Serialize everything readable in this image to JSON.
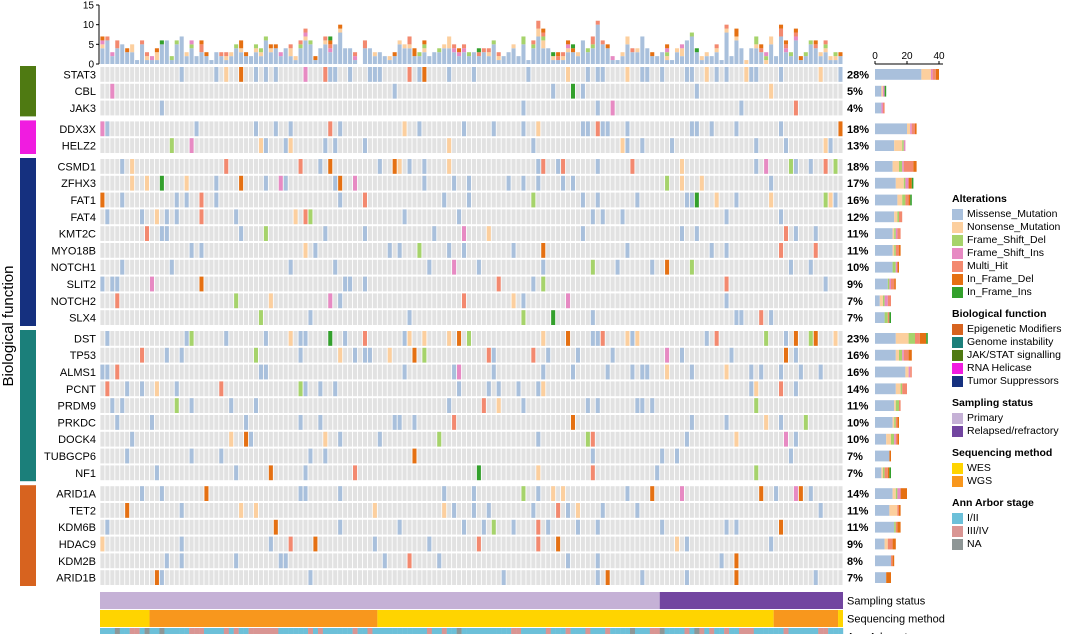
{
  "chart_data": {
    "type": "oncoprint",
    "n_samples": 150,
    "y_axis_label": "Biological function",
    "top_axis_ticks": [
      0,
      5,
      10,
      15
    ],
    "right_axis_ticks": [
      0,
      20,
      40
    ],
    "colors": {
      "Missense_Mutation": "#a9c0dc",
      "Nonsense_Mutation": "#fccf9e",
      "Frame_Shift_Del": "#a6d36b",
      "Frame_Shift_Ins": "#e78ac3",
      "Multi_Hit": "#f3896f",
      "In_Frame_Del": "#e57012",
      "In_Frame_Ins": "#33a02c",
      "Epigenetic Modifiers": "#d7631f",
      "Genome instability": "#1b7f7a",
      "JAK/STAT signalling": "#4f7a12",
      "RNA Helicase": "#f01ce0",
      "Tumor Suppressors": "#15307f",
      "Primary": "#c5b1d6",
      "Relapsed/refractory": "#7245a0",
      "WES": "#ffd400",
      "WGS": "#f8971d",
      "I/II": "#6cc0d9",
      "III/IV": "#d99593",
      "NA": "#8e9696",
      "empty": "#e2e2e2"
    },
    "genes": [
      {
        "name": "STAT3",
        "pct": "28%",
        "group": "JAK/STAT signalling",
        "count": 40,
        "freq": 0.28
      },
      {
        "name": "CBL",
        "pct": "5%",
        "group": "JAK/STAT signalling",
        "count": 7,
        "freq": 0.05
      },
      {
        "name": "JAK3",
        "pct": "4%",
        "group": "JAK/STAT signalling",
        "count": 6,
        "freq": 0.04
      },
      {
        "name": "DDX3X",
        "pct": "18%",
        "group": "RNA Helicase",
        "count": 26,
        "freq": 0.18
      },
      {
        "name": "HELZ2",
        "pct": "13%",
        "group": "RNA Helicase",
        "count": 19,
        "freq": 0.13
      },
      {
        "name": "CSMD1",
        "pct": "18%",
        "group": "Tumor Suppressors",
        "count": 26,
        "freq": 0.18
      },
      {
        "name": "ZFHX3",
        "pct": "17%",
        "group": "Tumor Suppressors",
        "count": 24,
        "freq": 0.17
      },
      {
        "name": "FAT1",
        "pct": "16%",
        "group": "Tumor Suppressors",
        "count": 23,
        "freq": 0.16
      },
      {
        "name": "FAT4",
        "pct": "12%",
        "group": "Tumor Suppressors",
        "count": 17,
        "freq": 0.12
      },
      {
        "name": "KMT2C",
        "pct": "11%",
        "group": "Tumor Suppressors",
        "count": 16,
        "freq": 0.11
      },
      {
        "name": "MYO18B",
        "pct": "11%",
        "group": "Tumor Suppressors",
        "count": 16,
        "freq": 0.11
      },
      {
        "name": "NOTCH1",
        "pct": "10%",
        "group": "Tumor Suppressors",
        "count": 15,
        "freq": 0.1
      },
      {
        "name": "SLIT2",
        "pct": "9%",
        "group": "Tumor Suppressors",
        "count": 13,
        "freq": 0.09
      },
      {
        "name": "NOTCH2",
        "pct": "7%",
        "group": "Tumor Suppressors",
        "count": 10,
        "freq": 0.07
      },
      {
        "name": "SLX4",
        "pct": "7%",
        "group": "Tumor Suppressors",
        "count": 10,
        "freq": 0.07
      },
      {
        "name": "DST",
        "pct": "23%",
        "group": "Genome instability",
        "count": 33,
        "freq": 0.23
      },
      {
        "name": "TP53",
        "pct": "16%",
        "group": "Genome instability",
        "count": 23,
        "freq": 0.16
      },
      {
        "name": "ALMS1",
        "pct": "16%",
        "group": "Genome instability",
        "count": 23,
        "freq": 0.16
      },
      {
        "name": "PCNT",
        "pct": "14%",
        "group": "Genome instability",
        "count": 20,
        "freq": 0.14
      },
      {
        "name": "PRDM9",
        "pct": "11%",
        "group": "Genome instability",
        "count": 16,
        "freq": 0.11
      },
      {
        "name": "PRKDC",
        "pct": "10%",
        "group": "Genome instability",
        "count": 15,
        "freq": 0.1
      },
      {
        "name": "DOCK4",
        "pct": "10%",
        "group": "Genome instability",
        "count": 15,
        "freq": 0.1
      },
      {
        "name": "TUBGCP6",
        "pct": "7%",
        "group": "Genome instability",
        "count": 10,
        "freq": 0.07
      },
      {
        "name": "NF1",
        "pct": "7%",
        "group": "Genome instability",
        "count": 10,
        "freq": 0.07
      },
      {
        "name": "ARID1A",
        "pct": "14%",
        "group": "Epigenetic Modifiers",
        "count": 20,
        "freq": 0.14
      },
      {
        "name": "TET2",
        "pct": "11%",
        "group": "Epigenetic Modifiers",
        "count": 16,
        "freq": 0.11
      },
      {
        "name": "KDM6B",
        "pct": "11%",
        "group": "Epigenetic Modifiers",
        "count": 16,
        "freq": 0.11
      },
      {
        "name": "HDAC9",
        "pct": "9%",
        "group": "Epigenetic Modifiers",
        "count": 13,
        "freq": 0.09
      },
      {
        "name": "KDM2B",
        "pct": "8%",
        "group": "Epigenetic Modifiers",
        "count": 12,
        "freq": 0.08
      },
      {
        "name": "ARID1B",
        "pct": "7%",
        "group": "Epigenetic Modifiers",
        "count": 10,
        "freq": 0.07
      }
    ],
    "groups": [
      {
        "name": "JAK/STAT signalling",
        "genes": 3
      },
      {
        "name": "RNA Helicase",
        "genes": 2
      },
      {
        "name": "Tumor Suppressors",
        "genes": 10
      },
      {
        "name": "Genome instability",
        "genes": 9
      },
      {
        "name": "Epigenetic Modifiers",
        "genes": 6
      }
    ],
    "annotation_tracks": [
      {
        "name": "Sampling status",
        "segments": [
          {
            "category": "Primary",
            "samples": 113
          },
          {
            "category": "Relapsed/refractory",
            "samples": 37
          }
        ]
      },
      {
        "name": "Sequencing method",
        "segments": [
          {
            "category": "WES",
            "samples": 10
          },
          {
            "category": "WGS",
            "samples": 46
          },
          {
            "category": "WES",
            "samples": 80
          },
          {
            "category": "WGS",
            "samples": 13
          },
          {
            "category": "WES",
            "samples": 1
          }
        ]
      },
      {
        "name": "Ann Arbor stage",
        "pattern_seed": 7,
        "categories": [
          "I/II",
          "III/IV",
          "NA"
        ]
      }
    ]
  },
  "legend": {
    "alterations_title": "Alterations",
    "alterations": [
      "Missense_Mutation",
      "Nonsense_Mutation",
      "Frame_Shift_Del",
      "Frame_Shift_Ins",
      "Multi_Hit",
      "In_Frame_Del",
      "In_Frame_Ins"
    ],
    "biological_title": "Biological function",
    "biological": [
      "Epigenetic Modifiers",
      "Genome instability",
      "JAK/STAT signalling",
      "RNA Helicase",
      "Tumor Suppressors"
    ],
    "sampling_title": "Sampling status",
    "sampling": [
      "Primary",
      "Relapsed/refractory"
    ],
    "sequencing_title": "Sequencing method",
    "sequencing": [
      "WES",
      "WGS"
    ],
    "stage_title": "Ann Arbor stage",
    "stage": [
      "I/II",
      "III/IV",
      "NA"
    ]
  }
}
